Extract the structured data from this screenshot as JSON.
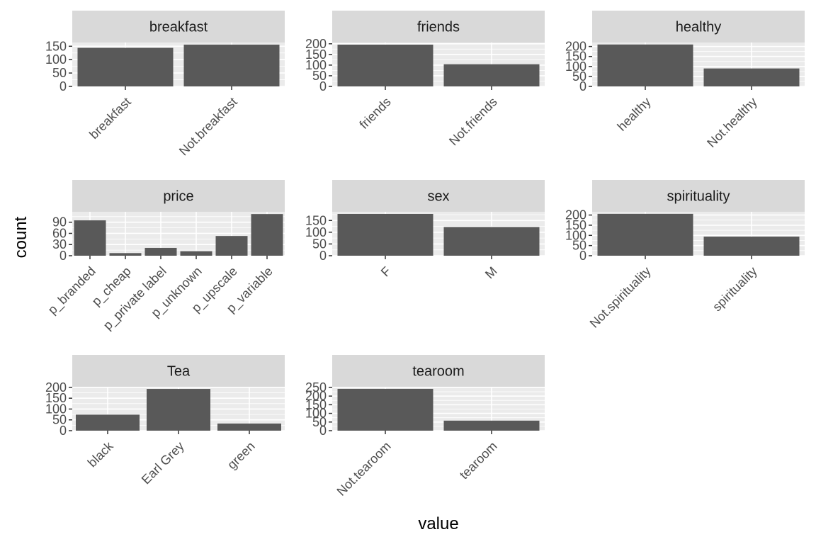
{
  "chart_data": {
    "type": "bar",
    "layout": "facet_wrap",
    "ncol": 3,
    "xlabel": "value",
    "ylabel": "count",
    "grid": true,
    "panels": [
      {
        "title": "breakfast",
        "categories": [
          "breakfast",
          "Not.breakfast"
        ],
        "values": [
          144,
          156
        ],
        "yticks": [
          0,
          50,
          100,
          150
        ],
        "ylim": [
          0,
          164
        ]
      },
      {
        "title": "friends",
        "categories": [
          "friends",
          "Not.friends"
        ],
        "values": [
          196,
          104
        ],
        "yticks": [
          0,
          50,
          100,
          150,
          200
        ],
        "ylim": [
          0,
          206
        ]
      },
      {
        "title": "healthy",
        "categories": [
          "healthy",
          "Not.healthy"
        ],
        "values": [
          210,
          90
        ],
        "yticks": [
          0,
          50,
          100,
          150,
          200
        ],
        "ylim": [
          0,
          220
        ]
      },
      {
        "title": "price",
        "categories": [
          "p_branded",
          "p_cheap",
          "p_private label",
          "p_unknown",
          "p_upscale",
          "p_variable"
        ],
        "values": [
          95,
          7,
          21,
          12,
          53,
          112
        ],
        "yticks": [
          0,
          30,
          60,
          90
        ],
        "ylim": [
          0,
          118
        ]
      },
      {
        "title": "sex",
        "categories": [
          "F",
          "M"
        ],
        "values": [
          178,
          122
        ],
        "yticks": [
          0,
          50,
          100,
          150
        ],
        "ylim": [
          0,
          187
        ]
      },
      {
        "title": "spirituality",
        "categories": [
          "Not.spirituality",
          "spirituality"
        ],
        "values": [
          206,
          94
        ],
        "yticks": [
          0,
          50,
          100,
          150,
          200
        ],
        "ylim": [
          0,
          216
        ]
      },
      {
        "title": "Tea",
        "categories": [
          "black",
          "Earl Grey",
          "green"
        ],
        "values": [
          74,
          193,
          33
        ],
        "yticks": [
          0,
          50,
          100,
          150,
          200
        ],
        "ylim": [
          0,
          203
        ]
      },
      {
        "title": "tearoom",
        "categories": [
          "Not.tearoom",
          "tearoom"
        ],
        "values": [
          242,
          58
        ],
        "yticks": [
          0,
          50,
          100,
          150,
          200,
          250
        ],
        "ylim": [
          0,
          254
        ]
      }
    ]
  }
}
